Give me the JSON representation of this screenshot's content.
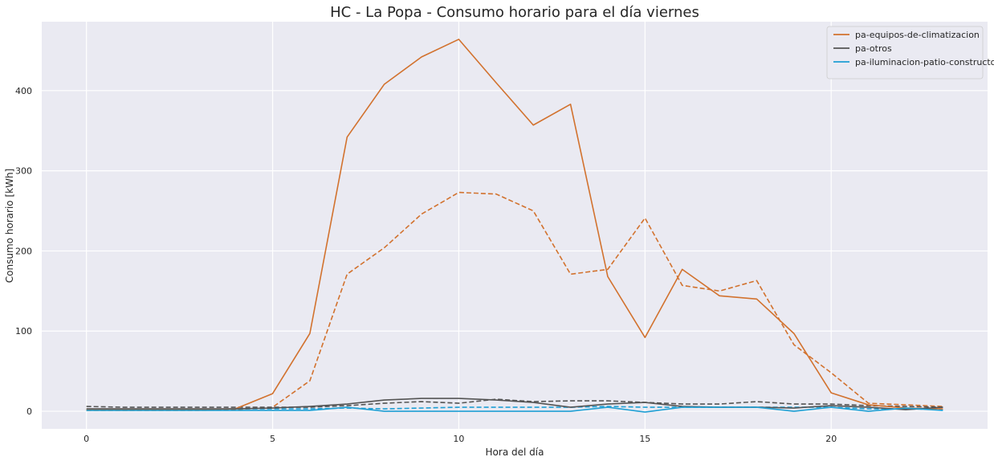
{
  "chart_data": {
    "type": "line",
    "title": "HC - La Popa - Consumo horario para el día viernes",
    "xlabel": "Hora del día",
    "ylabel": "Consumo horario [kWh]",
    "xlim": [
      -1.2,
      24.2
    ],
    "ylim": [
      -22,
      486
    ],
    "xticks": [
      0,
      5,
      10,
      15,
      20
    ],
    "yticks": [
      0,
      100,
      200,
      300,
      400
    ],
    "grid": true,
    "legend_position": "top-right",
    "x": [
      0,
      1,
      2,
      3,
      4,
      5,
      6,
      7,
      8,
      9,
      10,
      11,
      12,
      13,
      14,
      15,
      16,
      17,
      18,
      19,
      20,
      21,
      22,
      23
    ],
    "series": [
      {
        "name": "pa-equipos-de-climatizacion",
        "color": "#d2722e",
        "style": "solid",
        "in_legend": true,
        "values": [
          2,
          2,
          2,
          2,
          3,
          22,
          97,
          342,
          408,
          442,
          464,
          410,
          357,
          383,
          168,
          92,
          177,
          144,
          140,
          97,
          23,
          8,
          4,
          3
        ]
      },
      {
        "name": "pa-otros",
        "color": "#545454",
        "style": "solid",
        "in_legend": true,
        "values": [
          3,
          3,
          3,
          3,
          3,
          4,
          6,
          9,
          14,
          16,
          16,
          14,
          11,
          5,
          9,
          11,
          6,
          5,
          5,
          4,
          7,
          5,
          2,
          5
        ]
      },
      {
        "name": "pa-iluminacion-patio-constructor",
        "color": "#1f9fd4",
        "style": "solid",
        "in_legend": true,
        "values": [
          1,
          1,
          1,
          1,
          1,
          1,
          1,
          5,
          0,
          0,
          0,
          0,
          0,
          0,
          5,
          -1,
          5,
          5,
          5,
          0,
          5,
          0,
          4,
          1
        ]
      },
      {
        "name": "",
        "color": "#d2722e",
        "style": "dashed",
        "in_legend": false,
        "values": [
          1,
          1,
          1,
          1,
          2,
          5,
          38,
          171,
          204,
          246,
          273,
          271,
          250,
          171,
          177,
          241,
          157,
          150,
          163,
          83,
          48,
          10,
          8,
          6
        ]
      },
      {
        "name": "",
        "color": "#545454",
        "style": "dashed",
        "in_legend": false,
        "values": [
          6,
          5,
          5,
          5,
          5,
          5,
          5,
          7,
          10,
          12,
          10,
          15,
          12,
          13,
          13,
          11,
          9,
          9,
          12,
          9,
          9,
          7,
          6,
          5
        ]
      },
      {
        "name": "",
        "color": "#1f9fd4",
        "style": "dashed",
        "in_legend": false,
        "values": [
          2,
          2,
          2,
          2,
          3,
          3,
          3,
          4,
          3,
          4,
          5,
          5,
          5,
          5,
          6,
          5,
          5,
          5,
          5,
          5,
          5,
          3,
          3,
          2
        ]
      }
    ]
  }
}
